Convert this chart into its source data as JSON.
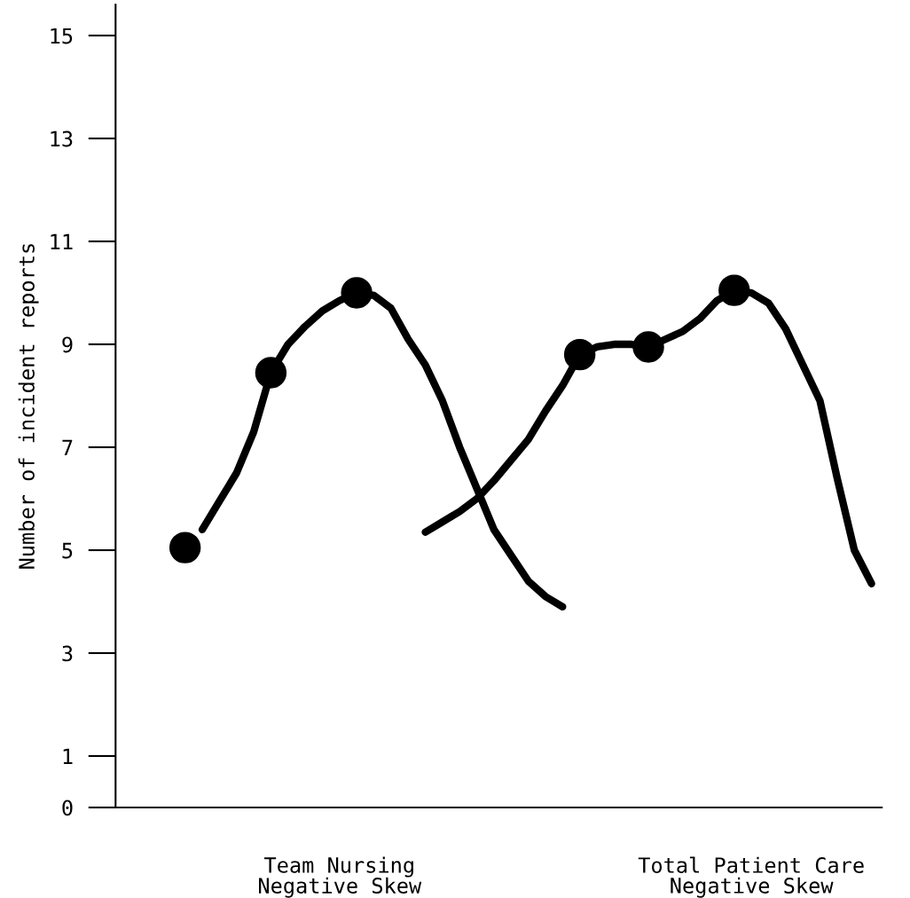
{
  "chart_data": {
    "type": "line",
    "ylabel": "Number of incident reports",
    "categories": [
      null,
      null,
      null,
      null,
      null,
      null,
      null,
      null,
      null,
      null,
      null,
      null,
      "Team Nursing\nNegative Skew",
      null,
      null,
      null,
      null,
      null,
      null,
      null,
      null,
      null,
      null,
      null,
      null,
      null,
      null,
      null,
      null,
      null,
      null,
      null,
      null,
      null,
      null,
      null,
      "Total Patient Care\nNegative Skew",
      null,
      null,
      null,
      null,
      null,
      null,
      null
    ],
    "ylim": [
      0,
      15.6
    ],
    "yticks": [
      0,
      1,
      3,
      5,
      7,
      9,
      11,
      13,
      15
    ],
    "line_style": "solid",
    "series": [
      {
        "type": "line",
        "color": "#000000",
        "marker": "none",
        "values": [
          null,
          null,
          null,
          null,
          5.4,
          5.95,
          6.5,
          7.3,
          8.45,
          9.0,
          9.35,
          9.65,
          9.85,
          10.0,
          9.95,
          9.7,
          9.1,
          8.6,
          7.9,
          7.0,
          6.2,
          5.4,
          4.9,
          4.4,
          4.1,
          3.9,
          null,
          null,
          null,
          null,
          null,
          null,
          null,
          null,
          null,
          null,
          null,
          null,
          null,
          null,
          null,
          null,
          null,
          null
        ]
      },
      {
        "type": "scatter",
        "color": "#000000",
        "marker": "circle",
        "values": [
          null,
          null,
          null,
          5.05,
          null,
          null,
          null,
          null,
          8.45,
          null,
          null,
          null,
          null,
          10.0,
          null,
          null,
          null,
          null,
          null,
          null,
          null,
          null,
          null,
          null,
          null,
          null,
          null,
          null,
          null,
          null,
          null,
          null,
          null,
          null,
          null,
          null,
          null,
          null,
          null,
          null,
          null,
          null,
          null,
          null
        ]
      },
      {
        "type": "line",
        "color": "#000000",
        "marker": "none",
        "values": [
          null,
          null,
          null,
          null,
          null,
          null,
          null,
          null,
          null,
          null,
          null,
          null,
          null,
          null,
          null,
          null,
          null,
          5.35,
          5.55,
          5.75,
          6.0,
          6.35,
          6.75,
          7.15,
          7.7,
          8.2,
          8.8,
          8.95,
          9.0,
          9.0,
          8.95,
          9.1,
          9.25,
          9.5,
          9.85,
          10.05,
          10.0,
          9.8,
          9.3,
          8.6,
          7.9,
          6.4,
          5.0,
          4.35
        ]
      },
      {
        "type": "scatter",
        "color": "#000000",
        "marker": "circle",
        "values": [
          null,
          null,
          null,
          null,
          null,
          null,
          null,
          null,
          null,
          null,
          null,
          null,
          null,
          null,
          null,
          null,
          null,
          null,
          null,
          null,
          null,
          null,
          null,
          null,
          null,
          null,
          8.8,
          null,
          null,
          null,
          8.95,
          null,
          null,
          null,
          null,
          10.05,
          null,
          null,
          null,
          null,
          null,
          null,
          null,
          null
        ]
      }
    ]
  }
}
